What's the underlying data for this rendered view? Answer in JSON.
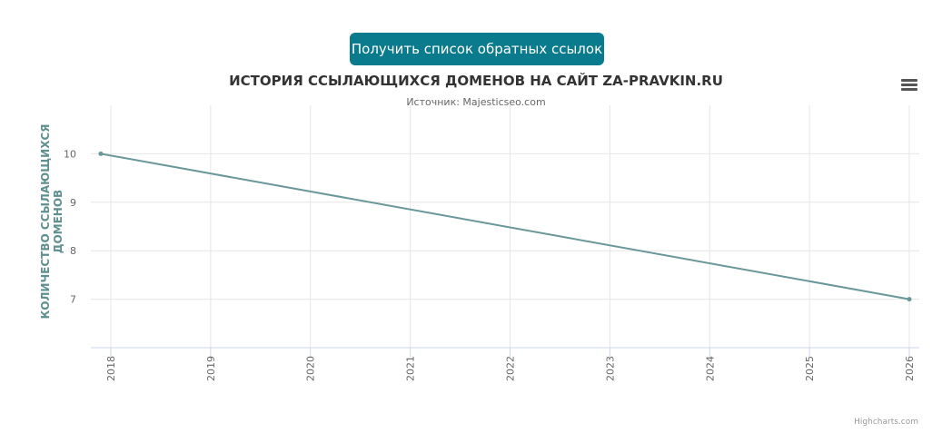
{
  "button": {
    "label": "Получить список обратных ссылок"
  },
  "chart_data": {
    "type": "line",
    "title": "ИСТОРИЯ ССЫЛАЮЩИХСЯ ДОМЕНОВ НА САЙТ ZA-PRAVKIN.RU",
    "subtitle": "Источник: Majesticseo.com",
    "y_label": "КОЛИЧЕСТВО ССЫЛАЮЩИХСЯ ДОМЕНОВ",
    "x": [
      2017.9,
      2026
    ],
    "series": [
      {
        "name": "Количество ссылающихся доменов",
        "color": "#6a9799",
        "values": [
          10,
          7
        ]
      }
    ],
    "xlim": [
      2017.8,
      2026.1
    ],
    "xticks": [
      2018,
      2019,
      2020,
      2021,
      2022,
      2023,
      2024,
      2025,
      2026
    ],
    "ylim": [
      6,
      11
    ],
    "yticks": [
      7,
      8,
      9,
      10
    ],
    "grid": true,
    "legend": false
  },
  "credits": "Highcharts.com"
}
